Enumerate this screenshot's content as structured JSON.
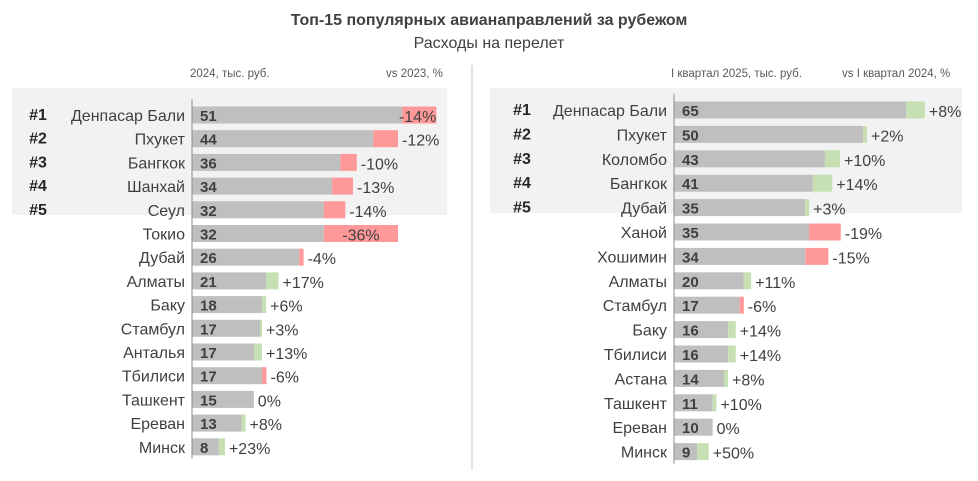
{
  "title": "Топ-15 популярных авианаправлений за рубежом",
  "subtitle": "Расходы на перелет",
  "colors": {
    "bar": "#bfbfbf",
    "decrease": "#ff9999",
    "increase": "#c6e0b4",
    "top5_bg": "#f2f2f2",
    "text": "#404040"
  },
  "chart_data": [
    {
      "type": "bar",
      "value_header": "2024, тыс. руб.",
      "change_header": "vs 2023, %",
      "ranks": [
        "#1",
        "#2",
        "#3",
        "#4",
        "#5"
      ],
      "categories": [
        "Денпасар Бали",
        "Пхукет",
        "Бангкок",
        "Шанхай",
        "Сеул",
        "Токио",
        "Дубай",
        "Алматы",
        "Баку",
        "Стамбул",
        "Анталья",
        "Тбилиси",
        "Ташкент",
        "Ереван",
        "Минск"
      ],
      "values": [
        51,
        44,
        36,
        34,
        32,
        32,
        26,
        21,
        18,
        17,
        17,
        17,
        15,
        13,
        8
      ],
      "change_pct": [
        -14,
        -12,
        -10,
        -13,
        -14,
        -36,
        -4,
        17,
        6,
        3,
        13,
        -6,
        0,
        8,
        23
      ],
      "change_labels": [
        "-14%",
        "-12%",
        "-10%",
        "-13%",
        "-14%",
        "-36%",
        "-4%",
        "+17%",
        "+6%",
        "+3%",
        "+13%",
        "-6%",
        "0%",
        "+8%",
        "+23%"
      ]
    },
    {
      "type": "bar",
      "value_header": "I квартал 2025, тыс. руб.",
      "change_header": "vs I квартал 2024, %",
      "ranks": [
        "#1",
        "#2",
        "#3",
        "#4",
        "#5"
      ],
      "categories": [
        "Денпасар Бали",
        "Пхукет",
        "Коломбо",
        "Бангкок",
        "Дубай",
        "Ханой",
        "Хошимин",
        "Алматы",
        "Стамбул",
        "Баку",
        "Тбилиси",
        "Астана",
        "Ташкент",
        "Ереван",
        "Минск"
      ],
      "values": [
        65,
        50,
        43,
        41,
        35,
        35,
        34,
        20,
        17,
        16,
        16,
        14,
        11,
        10,
        9
      ],
      "change_pct": [
        8,
        2,
        10,
        14,
        3,
        -19,
        -15,
        11,
        -6,
        14,
        14,
        8,
        10,
        0,
        50
      ],
      "change_labels": [
        "+8%",
        "+2%",
        "+10%",
        "+14%",
        "+3%",
        "-19%",
        "-15%",
        "+11%",
        "-6%",
        "+14%",
        "+14%",
        "+8%",
        "+10%",
        "0%",
        "+50%"
      ]
    }
  ]
}
